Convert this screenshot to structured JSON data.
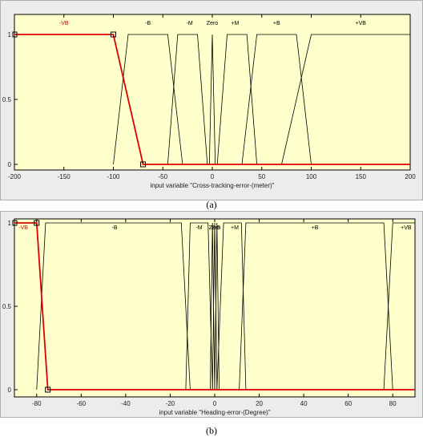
{
  "chart_data": [
    {
      "type": "line",
      "xlabel": "input variable \"Cross-tracking-error-(meter)\"",
      "caption": "(a)",
      "xlim": [
        -200,
        200
      ],
      "ylim": [
        0,
        1
      ],
      "xticks": [
        -200,
        -150,
        -100,
        -50,
        0,
        50,
        100,
        150,
        200
      ],
      "yticks": [
        0,
        0.5,
        1
      ],
      "selected": "-VB",
      "colors": {
        "background": "#ffffcc",
        "line": "#000000",
        "selected": "#dd0000"
      },
      "series": [
        {
          "name": "-VB",
          "label_x": -150,
          "points": [
            [
              -200,
              1
            ],
            [
              -100,
              1
            ],
            [
              -70,
              0
            ],
            [
              200,
              0
            ]
          ]
        },
        {
          "name": "-B",
          "label_x": -65,
          "points": [
            [
              -100,
              0
            ],
            [
              -85,
              1
            ],
            [
              -45,
              1
            ],
            [
              -30,
              0
            ]
          ]
        },
        {
          "name": "-M",
          "label_x": -23,
          "points": [
            [
              -45,
              0
            ],
            [
              -35,
              1
            ],
            [
              -15,
              1
            ],
            [
              -5,
              0
            ]
          ]
        },
        {
          "name": "Zero",
          "label_x": 0,
          "points": [
            [
              -3,
              0
            ],
            [
              0,
              1
            ],
            [
              3,
              0
            ]
          ]
        },
        {
          "name": "+M",
          "label_x": 23,
          "points": [
            [
              5,
              0
            ],
            [
              15,
              1
            ],
            [
              35,
              1
            ],
            [
              45,
              0
            ]
          ]
        },
        {
          "name": "+B",
          "label_x": 65,
          "points": [
            [
              30,
              0
            ],
            [
              45,
              1
            ],
            [
              85,
              1
            ],
            [
              100,
              0
            ]
          ]
        },
        {
          "name": "+VB",
          "label_x": 150,
          "points": [
            [
              70,
              0
            ],
            [
              100,
              1
            ],
            [
              200,
              1
            ]
          ]
        }
      ]
    },
    {
      "type": "line",
      "xlabel": "input variable \"Heading-error-(Degree)\"",
      "caption": "(b)",
      "xlim": [
        -90,
        90
      ],
      "ylim": [
        0,
        1
      ],
      "xticks": [
        -80,
        -60,
        -40,
        -20,
        0,
        20,
        40,
        60,
        80
      ],
      "yticks": [
        0,
        0.5,
        1
      ],
      "selected": "-VB",
      "colors": {
        "background": "#ffffcc",
        "line": "#000000",
        "selected": "#dd0000"
      },
      "series": [
        {
          "name": "-VB",
          "label_x": -86,
          "points": [
            [
              -90,
              1
            ],
            [
              -80,
              1
            ],
            [
              -75,
              0
            ],
            [
              90,
              0
            ]
          ]
        },
        {
          "name": "-B",
          "label_x": -45,
          "points": [
            [
              -80,
              0
            ],
            [
              -76,
              1
            ],
            [
              -15,
              1
            ],
            [
              -11,
              0
            ]
          ]
        },
        {
          "name": "-M",
          "label_x": -7,
          "points": [
            [
              -13,
              0
            ],
            [
              -11,
              1
            ],
            [
              -3,
              1
            ],
            [
              -1,
              0
            ]
          ]
        },
        {
          "name": "-S",
          "label_x": -1,
          "points": [
            [
              -2,
              0
            ],
            [
              -1,
              1
            ],
            [
              0,
              0
            ]
          ]
        },
        {
          "name": "Zero",
          "label_x": 0,
          "points": [
            [
              -1,
              0
            ],
            [
              0,
              1
            ],
            [
              1,
              0
            ]
          ]
        },
        {
          "name": "+S",
          "label_x": 1,
          "points": [
            [
              0,
              0
            ],
            [
              1,
              1
            ],
            [
              2,
              0
            ]
          ]
        },
        {
          "name": "+M",
          "label_x": 9,
          "points": [
            [
              1,
              0
            ],
            [
              4,
              1
            ],
            [
              12,
              1
            ],
            [
              14,
              0
            ]
          ]
        },
        {
          "name": "+B",
          "label_x": 45,
          "points": [
            [
              11,
              0
            ],
            [
              14,
              1
            ],
            [
              76,
              1
            ],
            [
              80,
              0
            ]
          ]
        },
        {
          "name": "+VB",
          "label_x": 86,
          "points": [
            [
              76,
              0
            ],
            [
              80,
              1
            ],
            [
              90,
              1
            ]
          ]
        }
      ]
    }
  ]
}
